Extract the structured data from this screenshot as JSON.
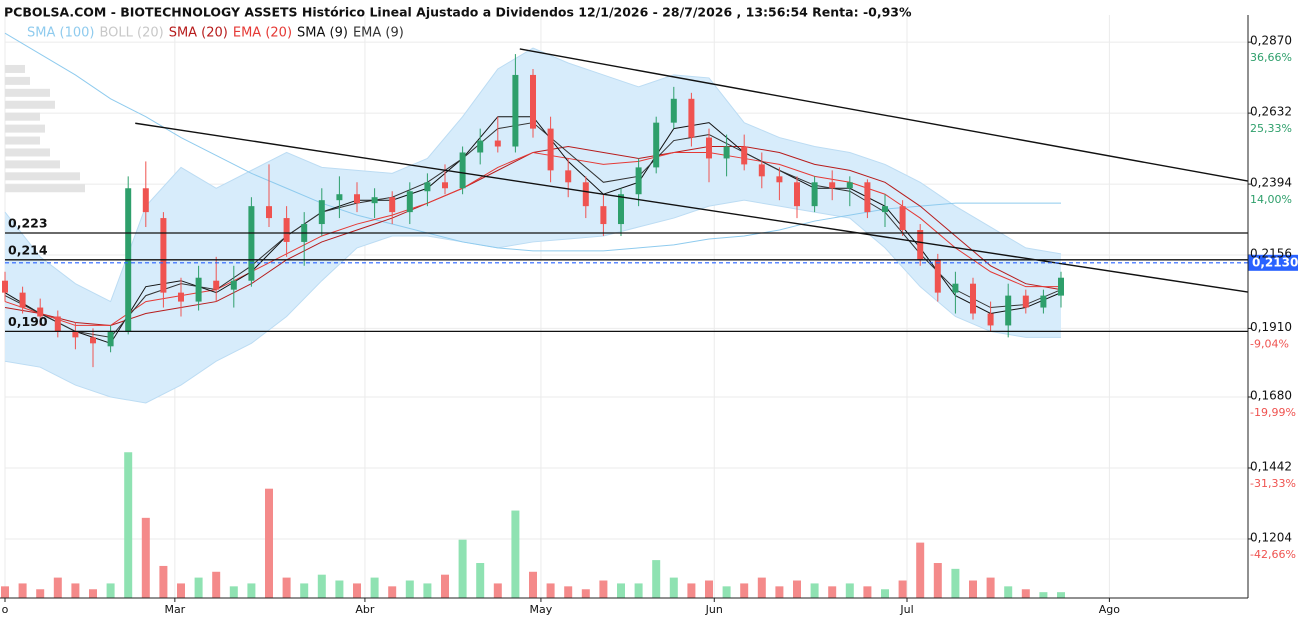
{
  "chart_data": {
    "type": "candlestick",
    "title": "PCBOLSA.COM - BIOTECHNOLOGY ASSETS Histórico Lineal Ajustado a Dividendos 12/1/2026 - 28/7/2026 , 13:56:54 Renta: -0,93%",
    "xlim": [
      0,
      141.25
    ],
    "ylim": [
      0.1006,
      0.2961
    ],
    "xticks": [
      {
        "value": 0,
        "label": "o"
      },
      {
        "value": 19.3,
        "label": "Mar"
      },
      {
        "value": 40.9,
        "label": "Abr"
      },
      {
        "value": 60.9,
        "label": "May"
      },
      {
        "value": 80.6,
        "label": "Jun"
      },
      {
        "value": 102.5,
        "label": "Jul"
      },
      {
        "value": 125.5,
        "label": "Ago"
      }
    ],
    "yticks": [
      {
        "value": 0.287,
        "label": "0,2870"
      },
      {
        "value": 0.2632,
        "label": "0,2632"
      },
      {
        "value": 0.2394,
        "label": "0,2394"
      },
      {
        "value": 0.2156,
        "label": "0,2156"
      },
      {
        "value": 0.191,
        "label": "0,1910"
      },
      {
        "value": 0.168,
        "label": "0,1680"
      },
      {
        "value": 0.1442,
        "label": "0,1442"
      },
      {
        "value": 0.1204,
        "label": "0,1204"
      }
    ],
    "ytick_pct": [
      "36,66%",
      "25,33%",
      "14,00%",
      "",
      "-9,04%",
      "-19,99%",
      "-31,33%",
      "-42,66%"
    ],
    "grid": true,
    "up_color": "#2e9f6b",
    "down_color": "#ef5350",
    "volume_up_color": "#8fe2b2",
    "volume_down_color": "#f48a8a",
    "candles": {
      "x": [
        0,
        2,
        4,
        6,
        8,
        10,
        12,
        14,
        16,
        18,
        20,
        22,
        24,
        26,
        28,
        30,
        32,
        34,
        36,
        38,
        40,
        42,
        44,
        46,
        48,
        50,
        52,
        54,
        56,
        58,
        60,
        62,
        64,
        66,
        68,
        70,
        72,
        74,
        76,
        78,
        80,
        82,
        84,
        86,
        88,
        90,
        92,
        94,
        96,
        98,
        100,
        102,
        104,
        106,
        108,
        110,
        112,
        114,
        116,
        118,
        120
      ],
      "open": [
        0.207,
        0.203,
        0.198,
        0.195,
        0.19,
        0.188,
        0.185,
        0.19,
        0.238,
        0.228,
        0.203,
        0.2,
        0.207,
        0.204,
        0.207,
        0.232,
        0.228,
        0.22,
        0.226,
        0.234,
        0.236,
        0.233,
        0.235,
        0.23,
        0.237,
        0.24,
        0.238,
        0.25,
        0.254,
        0.252,
        0.276,
        0.258,
        0.244,
        0.24,
        0.232,
        0.226,
        0.236,
        0.245,
        0.26,
        0.268,
        0.255,
        0.248,
        0.252,
        0.246,
        0.242,
        0.24,
        0.232,
        0.24,
        0.238,
        0.24,
        0.23,
        0.232,
        0.224,
        0.214,
        0.203,
        0.206,
        0.196,
        0.192,
        0.202,
        0.198,
        0.202
      ],
      "high": [
        0.21,
        0.205,
        0.201,
        0.197,
        0.193,
        0.191,
        0.192,
        0.242,
        0.247,
        0.23,
        0.208,
        0.212,
        0.215,
        0.212,
        0.235,
        0.246,
        0.232,
        0.23,
        0.238,
        0.242,
        0.24,
        0.238,
        0.237,
        0.24,
        0.243,
        0.246,
        0.252,
        0.258,
        0.262,
        0.283,
        0.278,
        0.262,
        0.248,
        0.242,
        0.236,
        0.238,
        0.248,
        0.262,
        0.272,
        0.27,
        0.258,
        0.256,
        0.256,
        0.25,
        0.245,
        0.242,
        0.242,
        0.244,
        0.242,
        0.241,
        0.236,
        0.234,
        0.226,
        0.216,
        0.21,
        0.208,
        0.2,
        0.206,
        0.204,
        0.204,
        0.21
      ],
      "low": [
        0.2,
        0.196,
        0.192,
        0.188,
        0.184,
        0.178,
        0.183,
        0.189,
        0.225,
        0.198,
        0.195,
        0.197,
        0.2,
        0.198,
        0.205,
        0.225,
        0.215,
        0.212,
        0.222,
        0.228,
        0.23,
        0.228,
        0.226,
        0.226,
        0.232,
        0.236,
        0.236,
        0.246,
        0.25,
        0.25,
        0.255,
        0.24,
        0.235,
        0.228,
        0.222,
        0.222,
        0.232,
        0.243,
        0.258,
        0.252,
        0.24,
        0.242,
        0.244,
        0.238,
        0.234,
        0.228,
        0.23,
        0.234,
        0.232,
        0.228,
        0.225,
        0.222,
        0.212,
        0.2,
        0.196,
        0.194,
        0.19,
        0.188,
        0.196,
        0.196,
        0.198
      ],
      "close": [
        0.203,
        0.198,
        0.195,
        0.19,
        0.188,
        0.186,
        0.19,
        0.238,
        0.23,
        0.203,
        0.2,
        0.208,
        0.204,
        0.207,
        0.232,
        0.228,
        0.22,
        0.226,
        0.234,
        0.236,
        0.233,
        0.235,
        0.23,
        0.237,
        0.24,
        0.238,
        0.25,
        0.254,
        0.252,
        0.276,
        0.258,
        0.244,
        0.24,
        0.232,
        0.226,
        0.236,
        0.245,
        0.26,
        0.268,
        0.255,
        0.248,
        0.252,
        0.246,
        0.242,
        0.24,
        0.232,
        0.24,
        0.238,
        0.24,
        0.23,
        0.232,
        0.224,
        0.214,
        0.203,
        0.206,
        0.196,
        0.192,
        0.202,
        0.198,
        0.202,
        0.208
      ],
      "volume": [
        8,
        10,
        6,
        14,
        10,
        6,
        10,
        100,
        55,
        22,
        10,
        14,
        18,
        8,
        10,
        75,
        14,
        10,
        16,
        12,
        10,
        14,
        8,
        12,
        10,
        16,
        40,
        24,
        10,
        60,
        18,
        10,
        8,
        6,
        12,
        10,
        10,
        26,
        14,
        10,
        12,
        8,
        10,
        14,
        8,
        12,
        10,
        8,
        10,
        8,
        6,
        12,
        38,
        24,
        20,
        12,
        14,
        8,
        6,
        4,
        4
      ]
    },
    "volume_ylim": [
      0,
      400
    ],
    "indicators_x": [
      0,
      4,
      8,
      12,
      16,
      20,
      24,
      28,
      32,
      36,
      40,
      44,
      48,
      52,
      56,
      60,
      64,
      68,
      72,
      76,
      80,
      84,
      88,
      92,
      96,
      100,
      104,
      108,
      112,
      116,
      120
    ],
    "bollinger": {
      "name": "BOLL (20)",
      "color": "#cfcfcf",
      "fill": "#d7ecfb",
      "upper": [
        0.23,
        0.215,
        0.206,
        0.2,
        0.232,
        0.245,
        0.238,
        0.244,
        0.25,
        0.245,
        0.244,
        0.243,
        0.248,
        0.262,
        0.278,
        0.285,
        0.28,
        0.276,
        0.272,
        0.276,
        0.275,
        0.26,
        0.255,
        0.252,
        0.25,
        0.246,
        0.24,
        0.232,
        0.225,
        0.218,
        0.216
      ],
      "lower": [
        0.18,
        0.178,
        0.172,
        0.168,
        0.166,
        0.172,
        0.18,
        0.186,
        0.195,
        0.207,
        0.218,
        0.222,
        0.222,
        0.22,
        0.218,
        0.22,
        0.221,
        0.222,
        0.225,
        0.228,
        0.232,
        0.234,
        0.232,
        0.23,
        0.228,
        0.218,
        0.205,
        0.195,
        0.19,
        0.188,
        0.188
      ]
    },
    "series": [
      {
        "name": "SMA (100)",
        "color": "#8fcbee",
        "width": 1,
        "values": [
          0.29,
          0.283,
          0.276,
          0.268,
          0.262,
          0.255,
          0.249,
          0.243,
          0.238,
          0.233,
          0.229,
          0.226,
          0.223,
          0.22,
          0.218,
          0.217,
          0.217,
          0.217,
          0.218,
          0.219,
          0.221,
          0.222,
          0.224,
          0.227,
          0.229,
          0.231,
          0.232,
          0.233,
          0.233,
          0.233,
          0.233
        ]
      },
      {
        "name": "SMA (20)",
        "color": "#b71c1c",
        "width": 1,
        "values": [
          0.198,
          0.196,
          0.193,
          0.192,
          0.196,
          0.198,
          0.2,
          0.206,
          0.214,
          0.22,
          0.224,
          0.228,
          0.233,
          0.238,
          0.244,
          0.25,
          0.252,
          0.25,
          0.248,
          0.25,
          0.252,
          0.252,
          0.25,
          0.246,
          0.244,
          0.24,
          0.232,
          0.222,
          0.212,
          0.206,
          0.204
        ]
      },
      {
        "name": "EMA (20)",
        "color": "#e53935",
        "width": 1,
        "values": [
          0.2,
          0.196,
          0.192,
          0.192,
          0.2,
          0.202,
          0.204,
          0.21,
          0.216,
          0.222,
          0.226,
          0.229,
          0.233,
          0.238,
          0.245,
          0.25,
          0.248,
          0.246,
          0.247,
          0.25,
          0.25,
          0.248,
          0.246,
          0.242,
          0.24,
          0.236,
          0.228,
          0.218,
          0.21,
          0.205,
          0.205
        ]
      },
      {
        "name": "SMA (9)",
        "color": "#111111",
        "width": 1,
        "values": [
          0.203,
          0.196,
          0.19,
          0.186,
          0.205,
          0.207,
          0.203,
          0.21,
          0.222,
          0.23,
          0.234,
          0.234,
          0.238,
          0.248,
          0.262,
          0.262,
          0.247,
          0.236,
          0.24,
          0.258,
          0.26,
          0.25,
          0.244,
          0.238,
          0.238,
          0.232,
          0.218,
          0.202,
          0.196,
          0.198,
          0.203
        ]
      },
      {
        "name": "EMA (9)",
        "color": "#333333",
        "width": 1,
        "values": [
          0.202,
          0.196,
          0.19,
          0.188,
          0.202,
          0.206,
          0.204,
          0.212,
          0.222,
          0.23,
          0.233,
          0.235,
          0.24,
          0.248,
          0.258,
          0.26,
          0.25,
          0.24,
          0.242,
          0.254,
          0.256,
          0.25,
          0.244,
          0.239,
          0.237,
          0.23,
          0.216,
          0.204,
          0.198,
          0.199,
          0.204
        ]
      }
    ],
    "levels": [
      {
        "value": 0.223,
        "label": "0,223"
      },
      {
        "value": 0.214,
        "label": "0,214"
      },
      {
        "value": 0.19,
        "label": "0,190"
      }
    ],
    "last_price": {
      "value": 0.213,
      "label": "0,2130",
      "color": "#2962ff"
    },
    "trendlines": [
      {
        "x": [
          58.5,
          141.25
        ],
        "y": [
          0.2847,
          0.2404
        ]
      },
      {
        "x": [
          14.8,
          141.25
        ],
        "y": [
          0.2598,
          0.2032
        ]
      }
    ],
    "volume_profile": {
      "prices": [
        0.278,
        0.274,
        0.27,
        0.266,
        0.262,
        0.258,
        0.254,
        0.25,
        0.246,
        0.242,
        0.238
      ],
      "values": [
        20,
        25,
        45,
        50,
        35,
        40,
        35,
        45,
        55,
        75,
        80
      ]
    }
  }
}
